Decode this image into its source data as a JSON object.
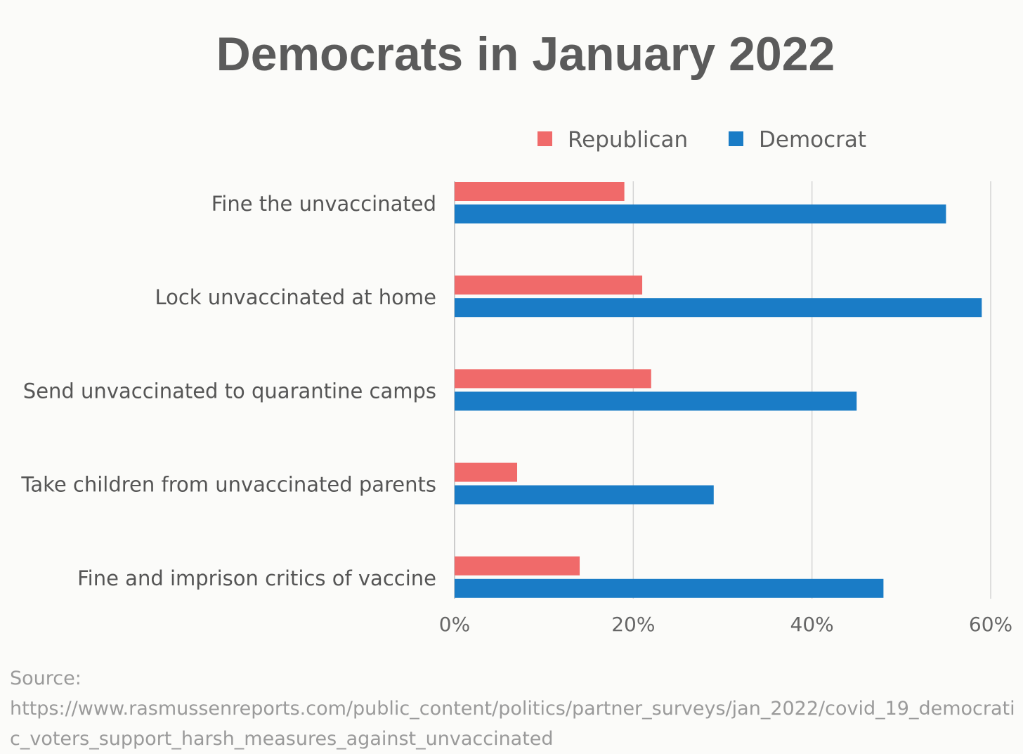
{
  "chart_data": {
    "type": "bar",
    "orientation": "horizontal",
    "title": "Democrats in January 2022",
    "categories": [
      "Fine the unvaccinated",
      "Lock unvaccinated at home",
      "Send unvaccinated to quarantine camps",
      "Take children from unvaccinated parents",
      "Fine and imprison critics of vaccine"
    ],
    "series": [
      {
        "name": "Republican",
        "color": "#f06a6a",
        "values": [
          19,
          21,
          22,
          7,
          14
        ]
      },
      {
        "name": "Democrat",
        "color": "#1a7cc6",
        "values": [
          55,
          59,
          45,
          29,
          48
        ]
      }
    ],
    "xlim": [
      0,
      60
    ],
    "xticks": [
      "0%",
      "20%",
      "40%",
      "60%"
    ],
    "grid": true,
    "legend_position": "top-right"
  },
  "source": {
    "label": "Source:",
    "url": "https://www.rasmussenreports.com/public_content/politics/partner_surveys/jan_2022/covid_19_democratic_voters_support_harsh_measures_against_unvaccinated"
  }
}
